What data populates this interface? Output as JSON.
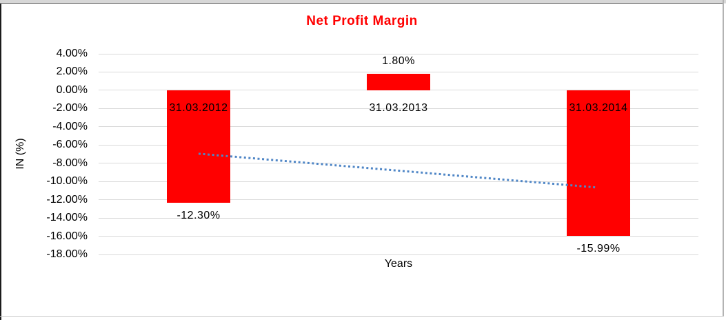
{
  "window": {
    "background": "#ffffff",
    "top_strip_color": "#d7d7d7"
  },
  "chart_data": {
    "type": "bar",
    "title": "Net Profit Margin",
    "title_color": "#ff0000",
    "xlabel": "Years",
    "ylabel": "IN (%)",
    "categories": [
      "31.03.2012",
      "31.03.2013",
      "31.03.2014"
    ],
    "values": [
      -12.3,
      1.8,
      -15.99
    ],
    "data_labels": [
      "-12.30%",
      "1.80%",
      "-15.99%"
    ],
    "bar_color": "#ff0000",
    "ylim": [
      -18,
      4
    ],
    "y_tick_step": 2,
    "y_ticks": [
      "4.00%",
      "2.00%",
      "0.00%",
      "-2.00%",
      "-4.00%",
      "-6.00%",
      "-8.00%",
      "-10.00%",
      "-12.00%",
      "-14.00%",
      "-16.00%",
      "-18.00%"
    ],
    "y_tick_values": [
      4,
      2,
      0,
      -2,
      -4,
      -6,
      -8,
      -10,
      -12,
      -14,
      -16,
      -18
    ],
    "category_label_position_value": -2,
    "gridlines": true,
    "gridline_color": "#d9d9d9",
    "legend": "none",
    "trendline": {
      "style": "dotted",
      "color": "#4f86c6",
      "start_value": -6.95,
      "end_value": -10.65
    }
  }
}
